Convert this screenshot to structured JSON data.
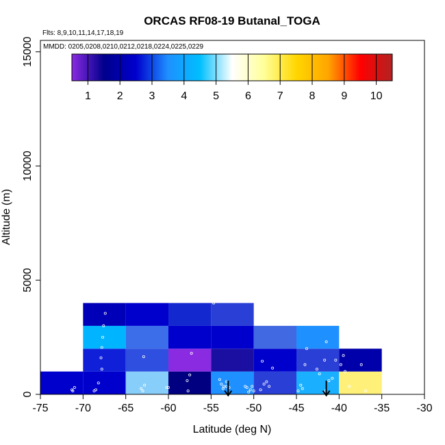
{
  "chart_data": {
    "type": "heatmap",
    "title": "ORCAS RF08-19 Butanal_TOGA",
    "subtitle_flights": "Flts: 8,9,10,11,14,17,18,19",
    "subtitle_dates": "MMDD: 0205,0208,0210,0212,0218,0224,0225,0229",
    "xlabel": "Latitude (deg N)",
    "ylabel": "Altitude (m)",
    "xlim": [
      -75,
      -30
    ],
    "ylim": [
      0,
      15500
    ],
    "xticks": [
      -75,
      -70,
      -65,
      -60,
      -55,
      -50,
      -45,
      -40,
      -35,
      -30
    ],
    "xtick_labels": [
      "-75",
      "-70",
      "-65",
      "-60",
      "-55",
      "-50",
      "-45",
      "-40",
      "-35",
      "-30"
    ],
    "yticks": [
      0,
      5000,
      10000,
      15000
    ],
    "ytick_labels": [
      "0",
      "5000",
      "10000",
      "15000"
    ],
    "colorbar": {
      "ticks": [
        1,
        2,
        3,
        4,
        5,
        6,
        7,
        8,
        9,
        10
      ],
      "labels": [
        "1",
        "2",
        "3",
        "4",
        "5",
        "6",
        "7",
        "8",
        "9",
        "10"
      ],
      "range": [
        0.5,
        10.5
      ],
      "stops": [
        "#8a2be2",
        "#00008b",
        "#0000cd",
        "#1e90ff",
        "#00bfff",
        "#ffffff",
        "#ffff99",
        "#ffd700",
        "#ffa500",
        "#ff0000",
        "#b22222"
      ]
    },
    "cells": [
      {
        "x0": -75,
        "x1": -70,
        "y0": 0,
        "y1": 1000,
        "color": "#0000cd"
      },
      {
        "x0": -70,
        "x1": -65,
        "y0": 0,
        "y1": 1000,
        "color": "#0000cd"
      },
      {
        "x0": -65,
        "x1": -60,
        "y0": 0,
        "y1": 1000,
        "color": "#87cefa"
      },
      {
        "x0": -60,
        "x1": -55,
        "y0": 0,
        "y1": 1000,
        "color": "#000080"
      },
      {
        "x0": -55,
        "x1": -50,
        "y0": 0,
        "y1": 1000,
        "color": "#1e90ff"
      },
      {
        "x0": -50,
        "x1": -45,
        "y0": 0,
        "y1": 1000,
        "color": "#2a3fd6"
      },
      {
        "x0": -45,
        "x1": -40,
        "y0": 0,
        "y1": 1000,
        "color": "#1ab0ff"
      },
      {
        "x0": -40,
        "x1": -35,
        "y0": 0,
        "y1": 1000,
        "color": "#fff07a"
      },
      {
        "x0": -70,
        "x1": -65,
        "y0": 1000,
        "y1": 2000,
        "color": "#1020d8"
      },
      {
        "x0": -65,
        "x1": -60,
        "y0": 1000,
        "y1": 2000,
        "color": "#2e4fe0"
      },
      {
        "x0": -60,
        "x1": -55,
        "y0": 1000,
        "y1": 2000,
        "color": "#8a2be2"
      },
      {
        "x0": -55,
        "x1": -50,
        "y0": 1000,
        "y1": 2000,
        "color": "#1a0fa0"
      },
      {
        "x0": -50,
        "x1": -45,
        "y0": 1000,
        "y1": 2000,
        "color": "#0000cd"
      },
      {
        "x0": -45,
        "x1": -40,
        "y0": 1000,
        "y1": 2000,
        "color": "#2a3fd6"
      },
      {
        "x0": -40,
        "x1": -35,
        "y0": 1000,
        "y1": 2000,
        "color": "#0000aa"
      },
      {
        "x0": -70,
        "x1": -65,
        "y0": 2000,
        "y1": 3000,
        "color": "#00b4ff"
      },
      {
        "x0": -65,
        "x1": -60,
        "y0": 2000,
        "y1": 3000,
        "color": "#3b6ee8"
      },
      {
        "x0": -60,
        "x1": -55,
        "y0": 2000,
        "y1": 3000,
        "color": "#0000cd"
      },
      {
        "x0": -55,
        "x1": -50,
        "y0": 2000,
        "y1": 3000,
        "color": "#0000cd"
      },
      {
        "x0": -50,
        "x1": -45,
        "y0": 2000,
        "y1": 3000,
        "color": "#4169e1"
      },
      {
        "x0": -45,
        "x1": -40,
        "y0": 2000,
        "y1": 3000,
        "color": "#1e90ff"
      },
      {
        "x0": -70,
        "x1": -65,
        "y0": 3000,
        "y1": 4000,
        "color": "#0000b8"
      },
      {
        "x0": -65,
        "x1": -60,
        "y0": 3000,
        "y1": 4000,
        "color": "#0000cd"
      },
      {
        "x0": -60,
        "x1": -55,
        "y0": 3000,
        "y1": 4000,
        "color": "#1428d0"
      },
      {
        "x0": -55,
        "x1": -50,
        "y0": 3000,
        "y1": 4000,
        "color": "#2a3fd6"
      }
    ],
    "points": [
      [
        -71.2,
        150
      ],
      [
        -71.0,
        300
      ],
      [
        -71.3,
        200
      ],
      [
        -68.5,
        200
      ],
      [
        -68.2,
        500
      ],
      [
        -68.7,
        150
      ],
      [
        -67.8,
        1100
      ],
      [
        -67.9,
        1600
      ],
      [
        -67.7,
        2500
      ],
      [
        -67.6,
        3000
      ],
      [
        -67.4,
        3550
      ],
      [
        -67.8,
        2050
      ],
      [
        -63.0,
        150
      ],
      [
        -62.8,
        400
      ],
      [
        -63.2,
        250
      ],
      [
        -62.9,
        1650
      ],
      [
        -60.2,
        300
      ],
      [
        -60.0,
        300
      ],
      [
        -57.7,
        150
      ],
      [
        -57.5,
        850
      ],
      [
        -57.8,
        600
      ],
      [
        -57.3,
        1800
      ],
      [
        -54.0,
        650
      ],
      [
        -53.8,
        450
      ],
      [
        -53.5,
        350
      ],
      [
        -53.2,
        350
      ],
      [
        -52.9,
        300
      ],
      [
        -53.6,
        250
      ],
      [
        -53.2,
        550
      ],
      [
        -51.0,
        350
      ],
      [
        -50.8,
        300
      ],
      [
        -50.4,
        200
      ],
      [
        -50.6,
        100
      ],
      [
        -50.2,
        350
      ],
      [
        -50.0,
        150
      ],
      [
        -49.2,
        200
      ],
      [
        -48.8,
        450
      ],
      [
        -48.5,
        550
      ],
      [
        -48.2,
        350
      ],
      [
        -47.8,
        1150
      ],
      [
        -49.0,
        1450
      ],
      [
        -54.7,
        4000
      ],
      [
        -44.8,
        150
      ],
      [
        -44.5,
        400
      ],
      [
        -44.3,
        250
      ],
      [
        -44.0,
        1300
      ],
      [
        -43.8,
        2000
      ],
      [
        -42.6,
        1100
      ],
      [
        -42.3,
        900
      ],
      [
        -41.2,
        600
      ],
      [
        -40.8,
        700
      ],
      [
        -41.6,
        150
      ],
      [
        -40.4,
        1500
      ],
      [
        -39.8,
        1300
      ],
      [
        -39.5,
        1700
      ],
      [
        -39.3,
        1000
      ],
      [
        -38.8,
        350
      ],
      [
        -41.7,
        1500
      ],
      [
        -41.5,
        2300
      ],
      [
        -36.9,
        150
      ],
      [
        -37.4,
        1300
      ]
    ],
    "arrows": [
      {
        "x": -53.0
      },
      {
        "x": -41.5
      }
    ]
  }
}
